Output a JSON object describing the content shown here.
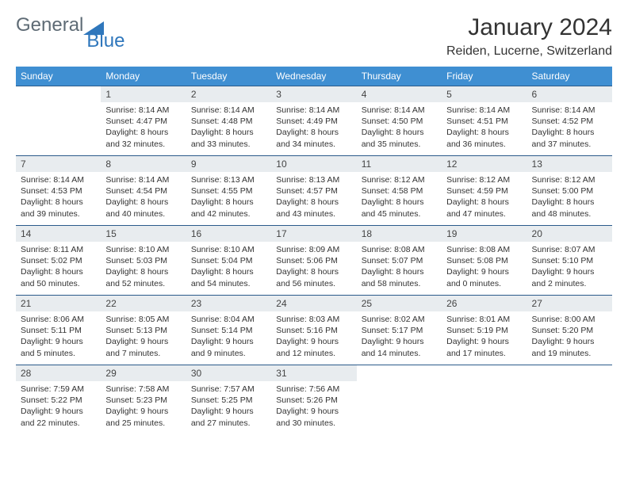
{
  "brand": {
    "part1": "General",
    "part2": "Blue"
  },
  "title": "January 2024",
  "location": "Reiden, Lucerne, Switzerland",
  "colors": {
    "header_bg": "#3f8fd2",
    "header_text": "#ffffff",
    "daynum_bg": "#e8ecef",
    "row_border": "#2b5b8b",
    "body_text": "#333333",
    "logo_general": "#5e6b75",
    "logo_blue": "#2f77bc"
  },
  "weekdays": [
    "Sunday",
    "Monday",
    "Tuesday",
    "Wednesday",
    "Thursday",
    "Friday",
    "Saturday"
  ],
  "blank_leading_cells": 1,
  "days": [
    {
      "n": "1",
      "sunrise": "Sunrise: 8:14 AM",
      "sunset": "Sunset: 4:47 PM",
      "daylight": "Daylight: 8 hours and 32 minutes."
    },
    {
      "n": "2",
      "sunrise": "Sunrise: 8:14 AM",
      "sunset": "Sunset: 4:48 PM",
      "daylight": "Daylight: 8 hours and 33 minutes."
    },
    {
      "n": "3",
      "sunrise": "Sunrise: 8:14 AM",
      "sunset": "Sunset: 4:49 PM",
      "daylight": "Daylight: 8 hours and 34 minutes."
    },
    {
      "n": "4",
      "sunrise": "Sunrise: 8:14 AM",
      "sunset": "Sunset: 4:50 PM",
      "daylight": "Daylight: 8 hours and 35 minutes."
    },
    {
      "n": "5",
      "sunrise": "Sunrise: 8:14 AM",
      "sunset": "Sunset: 4:51 PM",
      "daylight": "Daylight: 8 hours and 36 minutes."
    },
    {
      "n": "6",
      "sunrise": "Sunrise: 8:14 AM",
      "sunset": "Sunset: 4:52 PM",
      "daylight": "Daylight: 8 hours and 37 minutes."
    },
    {
      "n": "7",
      "sunrise": "Sunrise: 8:14 AM",
      "sunset": "Sunset: 4:53 PM",
      "daylight": "Daylight: 8 hours and 39 minutes."
    },
    {
      "n": "8",
      "sunrise": "Sunrise: 8:14 AM",
      "sunset": "Sunset: 4:54 PM",
      "daylight": "Daylight: 8 hours and 40 minutes."
    },
    {
      "n": "9",
      "sunrise": "Sunrise: 8:13 AM",
      "sunset": "Sunset: 4:55 PM",
      "daylight": "Daylight: 8 hours and 42 minutes."
    },
    {
      "n": "10",
      "sunrise": "Sunrise: 8:13 AM",
      "sunset": "Sunset: 4:57 PM",
      "daylight": "Daylight: 8 hours and 43 minutes."
    },
    {
      "n": "11",
      "sunrise": "Sunrise: 8:12 AM",
      "sunset": "Sunset: 4:58 PM",
      "daylight": "Daylight: 8 hours and 45 minutes."
    },
    {
      "n": "12",
      "sunrise": "Sunrise: 8:12 AM",
      "sunset": "Sunset: 4:59 PM",
      "daylight": "Daylight: 8 hours and 47 minutes."
    },
    {
      "n": "13",
      "sunrise": "Sunrise: 8:12 AM",
      "sunset": "Sunset: 5:00 PM",
      "daylight": "Daylight: 8 hours and 48 minutes."
    },
    {
      "n": "14",
      "sunrise": "Sunrise: 8:11 AM",
      "sunset": "Sunset: 5:02 PM",
      "daylight": "Daylight: 8 hours and 50 minutes."
    },
    {
      "n": "15",
      "sunrise": "Sunrise: 8:10 AM",
      "sunset": "Sunset: 5:03 PM",
      "daylight": "Daylight: 8 hours and 52 minutes."
    },
    {
      "n": "16",
      "sunrise": "Sunrise: 8:10 AM",
      "sunset": "Sunset: 5:04 PM",
      "daylight": "Daylight: 8 hours and 54 minutes."
    },
    {
      "n": "17",
      "sunrise": "Sunrise: 8:09 AM",
      "sunset": "Sunset: 5:06 PM",
      "daylight": "Daylight: 8 hours and 56 minutes."
    },
    {
      "n": "18",
      "sunrise": "Sunrise: 8:08 AM",
      "sunset": "Sunset: 5:07 PM",
      "daylight": "Daylight: 8 hours and 58 minutes."
    },
    {
      "n": "19",
      "sunrise": "Sunrise: 8:08 AM",
      "sunset": "Sunset: 5:08 PM",
      "daylight": "Daylight: 9 hours and 0 minutes."
    },
    {
      "n": "20",
      "sunrise": "Sunrise: 8:07 AM",
      "sunset": "Sunset: 5:10 PM",
      "daylight": "Daylight: 9 hours and 2 minutes."
    },
    {
      "n": "21",
      "sunrise": "Sunrise: 8:06 AM",
      "sunset": "Sunset: 5:11 PM",
      "daylight": "Daylight: 9 hours and 5 minutes."
    },
    {
      "n": "22",
      "sunrise": "Sunrise: 8:05 AM",
      "sunset": "Sunset: 5:13 PM",
      "daylight": "Daylight: 9 hours and 7 minutes."
    },
    {
      "n": "23",
      "sunrise": "Sunrise: 8:04 AM",
      "sunset": "Sunset: 5:14 PM",
      "daylight": "Daylight: 9 hours and 9 minutes."
    },
    {
      "n": "24",
      "sunrise": "Sunrise: 8:03 AM",
      "sunset": "Sunset: 5:16 PM",
      "daylight": "Daylight: 9 hours and 12 minutes."
    },
    {
      "n": "25",
      "sunrise": "Sunrise: 8:02 AM",
      "sunset": "Sunset: 5:17 PM",
      "daylight": "Daylight: 9 hours and 14 minutes."
    },
    {
      "n": "26",
      "sunrise": "Sunrise: 8:01 AM",
      "sunset": "Sunset: 5:19 PM",
      "daylight": "Daylight: 9 hours and 17 minutes."
    },
    {
      "n": "27",
      "sunrise": "Sunrise: 8:00 AM",
      "sunset": "Sunset: 5:20 PM",
      "daylight": "Daylight: 9 hours and 19 minutes."
    },
    {
      "n": "28",
      "sunrise": "Sunrise: 7:59 AM",
      "sunset": "Sunset: 5:22 PM",
      "daylight": "Daylight: 9 hours and 22 minutes."
    },
    {
      "n": "29",
      "sunrise": "Sunrise: 7:58 AM",
      "sunset": "Sunset: 5:23 PM",
      "daylight": "Daylight: 9 hours and 25 minutes."
    },
    {
      "n": "30",
      "sunrise": "Sunrise: 7:57 AM",
      "sunset": "Sunset: 5:25 PM",
      "daylight": "Daylight: 9 hours and 27 minutes."
    },
    {
      "n": "31",
      "sunrise": "Sunrise: 7:56 AM",
      "sunset": "Sunset: 5:26 PM",
      "daylight": "Daylight: 9 hours and 30 minutes."
    }
  ]
}
